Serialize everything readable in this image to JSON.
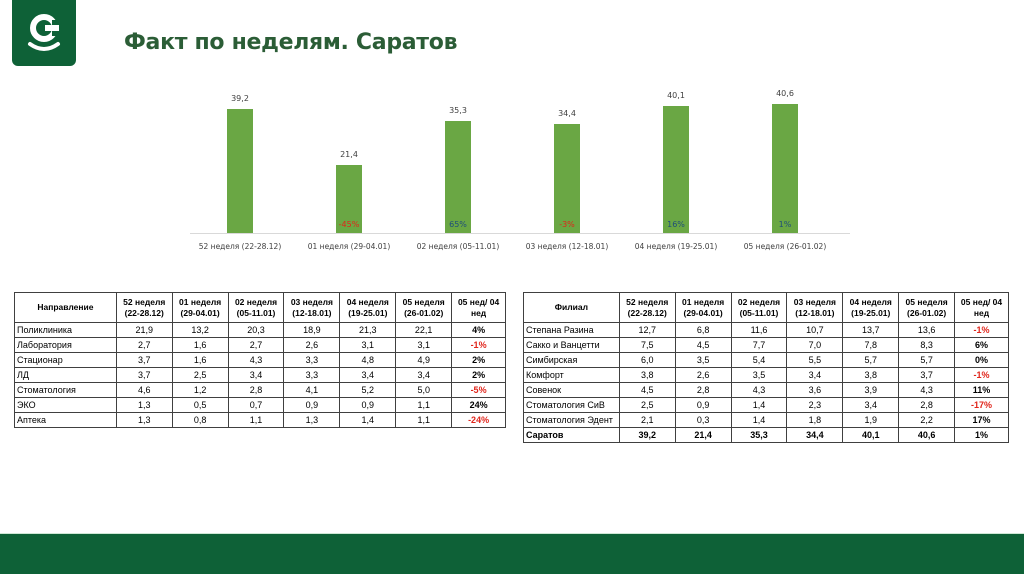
{
  "header": {
    "title": "Факт по неделям. Саратов",
    "logo": "company-logo",
    "brand_color": "#0e6137"
  },
  "chart_data": {
    "type": "bar",
    "title": "",
    "xlabel": "",
    "ylabel": "",
    "categories": [
      "52 неделя (22-28.12)",
      "01 неделя (29-04.01)",
      "02 неделя (05-11.01)",
      "03 неделя (12-18.01)",
      "04 неделя (19-25.01)",
      "05 неделя (26-01.02)"
    ],
    "values": [
      39.2,
      21.4,
      35.3,
      34.4,
      40.1,
      40.6
    ],
    "value_labels": [
      "39,2",
      "21,4",
      "35,3",
      "34,4",
      "40,1",
      "40,6"
    ],
    "change_labels": [
      "",
      "-45%",
      "65%",
      "-3%",
      "16%",
      "1%"
    ],
    "change_signs": [
      "",
      "neg",
      "pos",
      "neg",
      "pos",
      "pos"
    ],
    "bar_color": "#6aa744",
    "grid": false,
    "legend": null,
    "ylim": [
      0,
      41
    ]
  },
  "table_directions": {
    "headers": [
      "Направление",
      "52 неделя (22-28.12)",
      "01 неделя (29-04.01)",
      "02 неделя (05-11.01)",
      "03 неделя (12-18.01)",
      "04 неделя (19-25.01)",
      "05 неделя (26-01.02)",
      "05 нед/ 04 нед"
    ],
    "rows": [
      {
        "name": "Поликлиника",
        "values": [
          "21,9",
          "13,2",
          "20,3",
          "18,9",
          "21,3",
          "22,1"
        ],
        "change": "4%",
        "sign": "pos"
      },
      {
        "name": "Лаборатория",
        "values": [
          "2,7",
          "1,6",
          "2,7",
          "2,6",
          "3,1",
          "3,1"
        ],
        "change": "-1%",
        "sign": "neg"
      },
      {
        "name": "Стационар",
        "values": [
          "3,7",
          "1,6",
          "4,3",
          "3,3",
          "4,8",
          "4,9"
        ],
        "change": "2%",
        "sign": "pos"
      },
      {
        "name": "ЛД",
        "values": [
          "3,7",
          "2,5",
          "3,4",
          "3,3",
          "3,4",
          "3,4"
        ],
        "change": "2%",
        "sign": "pos"
      },
      {
        "name": "Стоматология",
        "values": [
          "4,6",
          "1,2",
          "2,8",
          "4,1",
          "5,2",
          "5,0"
        ],
        "change": "-5%",
        "sign": "neg"
      },
      {
        "name": "ЭКО",
        "values": [
          "1,3",
          "0,5",
          "0,7",
          "0,9",
          "0,9",
          "1,1"
        ],
        "change": "24%",
        "sign": "pos"
      },
      {
        "name": "Аптека",
        "values": [
          "1,3",
          "0,8",
          "1,1",
          "1,3",
          "1,4",
          "1,1"
        ],
        "change": "-24%",
        "sign": "neg"
      }
    ]
  },
  "table_branches": {
    "headers": [
      "Филиал",
      "52 неделя (22-28.12)",
      "01 неделя (29-04.01)",
      "02 неделя (05-11.01)",
      "03 неделя (12-18.01)",
      "04 неделя (19-25.01)",
      "05 неделя (26-01.02)",
      "05 нед/ 04 нед"
    ],
    "rows": [
      {
        "name": "Степана Разина",
        "values": [
          "12,7",
          "6,8",
          "11,6",
          "10,7",
          "13,7",
          "13,6"
        ],
        "change": "-1%",
        "sign": "neg"
      },
      {
        "name": "Сакко и Ванцетти",
        "values": [
          "7,5",
          "4,5",
          "7,7",
          "7,0",
          "7,8",
          "8,3"
        ],
        "change": "6%",
        "sign": "pos"
      },
      {
        "name": "Симбирская",
        "values": [
          "6,0",
          "3,5",
          "5,4",
          "5,5",
          "5,7",
          "5,7"
        ],
        "change": "0%",
        "sign": "pos"
      },
      {
        "name": "Комфорт",
        "values": [
          "3,8",
          "2,6",
          "3,5",
          "3,4",
          "3,8",
          "3,7"
        ],
        "change": "-1%",
        "sign": "neg"
      },
      {
        "name": "Совенок",
        "values": [
          "4,5",
          "2,8",
          "4,3",
          "3,6",
          "3,9",
          "4,3"
        ],
        "change": "11%",
        "sign": "pos"
      },
      {
        "name": "Стоматология СиВ",
        "values": [
          "2,5",
          "0,9",
          "1,4",
          "2,3",
          "3,4",
          "2,8"
        ],
        "change": "-17%",
        "sign": "neg"
      },
      {
        "name": "Стоматология Эдент",
        "values": [
          "2,1",
          "0,3",
          "1,4",
          "1,8",
          "1,9",
          "2,2"
        ],
        "change": "17%",
        "sign": "pos"
      }
    ],
    "total": {
      "name": "Саратов",
      "values": [
        "39,2",
        "21,4",
        "35,3",
        "34,4",
        "40,1",
        "40,6"
      ],
      "change": "1%",
      "sign": "pos"
    }
  }
}
